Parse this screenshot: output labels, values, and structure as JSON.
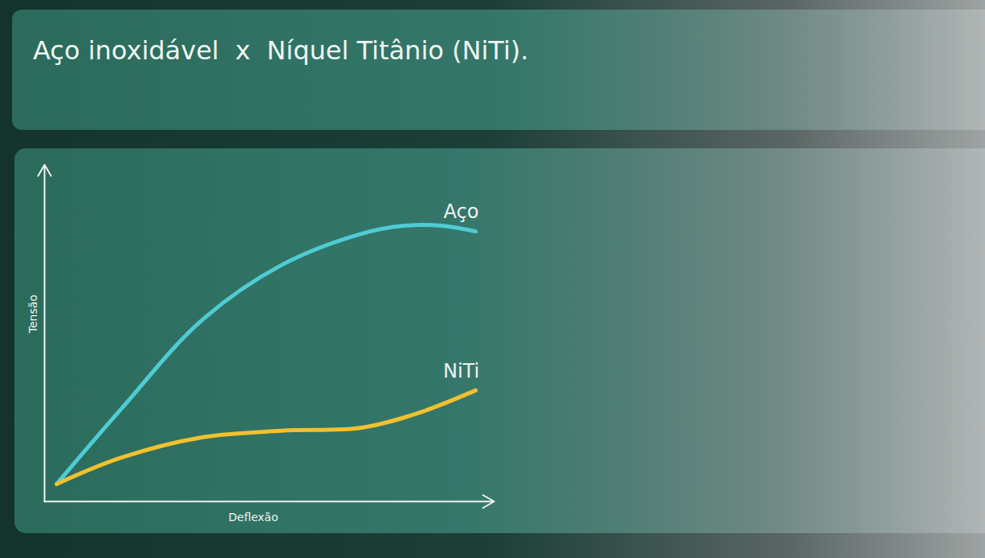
{
  "chart_data": {
    "type": "line",
    "title": "Aço inoxidável  x  Níquel Titânio (NiTi).",
    "x_label": "Deflexão",
    "y_label": "Tensão",
    "xlim": [
      0,
      100
    ],
    "ylim": [
      0,
      100
    ],
    "xticks": [],
    "yticks": [],
    "tick_labels": false,
    "grid": false,
    "series": [
      {
        "name": "Aço",
        "color": "#4fcbd3",
        "x": [
          2.7,
          17,
          34.8,
          52.7,
          70.5,
          80,
          88.4,
          95.9
        ],
        "values": [
          5.2,
          27.4,
          53.6,
          70.2,
          79.5,
          81.9,
          81.9,
          80.2
        ]
      },
      {
        "name": "NiTi",
        "color": "#f2c12e",
        "x": [
          2.7,
          17,
          34.8,
          52.7,
          70.5,
          83,
          95.9
        ],
        "values": [
          5.2,
          13,
          19,
          21,
          21.9,
          26.2,
          33
        ]
      }
    ]
  }
}
